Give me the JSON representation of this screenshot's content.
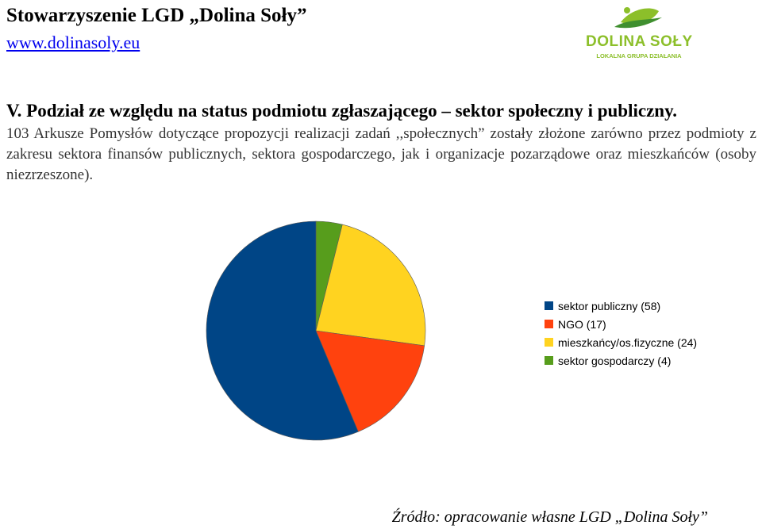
{
  "header": {
    "organization": "Stowarzyszenie LGD „Dolina Soły”",
    "website": "www.dolinasoly.eu"
  },
  "logo": {
    "name": "DOLINA SOŁY",
    "subtitle": "LOKALNA GRUPA DZIAŁANIA",
    "colors": {
      "leaf": "#8cbf2a",
      "swoosh": "#3f8f2f"
    }
  },
  "section": {
    "title": "V. Podział ze względu na status podmiotu zgłaszającego – sektor społeczny i publiczny.",
    "paragraph": "103 Arkusze Pomysłów dotyczące propozycji realizacji zadań ,,społecznych” zostały złożone zarówno przez podmioty z zakresu sektora finansów publicznych, sektora gospodarczego, jak i organizacje pozarządowe oraz mieszkańców (osoby niezrzeszone)."
  },
  "chart_data": {
    "type": "pie",
    "slices": [
      {
        "label": "sektor publiczny (58)",
        "value": 58,
        "color": "#004586"
      },
      {
        "label": "NGO (17)",
        "value": 17,
        "color": "#ff420e"
      },
      {
        "label": "mieszkańcy/os.fizyczne (24)",
        "value": 24,
        "color": "#ffd320"
      },
      {
        "label": "sektor gospodarczy (4)",
        "value": 4,
        "color": "#579d1c"
      }
    ],
    "legend_position": "right"
  },
  "source": "Źródło: opracowanie własne LGD „Dolina Soły”"
}
